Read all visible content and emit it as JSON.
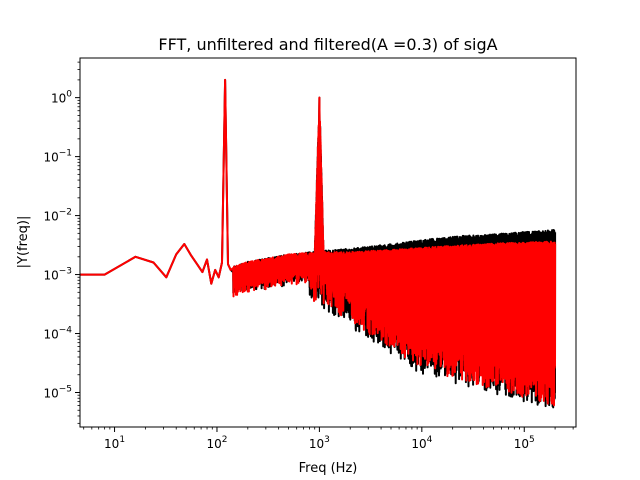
{
  "chart_data": {
    "type": "line",
    "title": "FFT, unfiltered and filtered(A =0.3) of sigA",
    "xlabel": "Freq (Hz)",
    "ylabel": "|Y(freq)|",
    "xscale": "log",
    "yscale": "log",
    "xlim": [
      4.6,
      320000
    ],
    "ylim": [
      2.6e-06,
      4.7
    ],
    "xticks": [
      {
        "value": 10,
        "base": "10",
        "exp": "1"
      },
      {
        "value": 100,
        "base": "10",
        "exp": "2"
      },
      {
        "value": 1000,
        "base": "10",
        "exp": "3"
      },
      {
        "value": 10000,
        "base": "10",
        "exp": "4"
      },
      {
        "value": 100000,
        "base": "10",
        "exp": "5"
      }
    ],
    "yticks": [
      {
        "value": 1e-05,
        "base": "10",
        "exp": "−5"
      },
      {
        "value": 0.0001,
        "base": "10",
        "exp": "−4"
      },
      {
        "value": 0.001,
        "base": "10",
        "exp": "−3"
      },
      {
        "value": 0.01,
        "base": "10",
        "exp": "−2"
      },
      {
        "value": 0.1,
        "base": "10",
        "exp": "−1"
      },
      {
        "value": 1,
        "base": "10",
        "exp": "0"
      }
    ],
    "grid": false,
    "series": [
      {
        "name": "unfiltered",
        "color": "#000000",
        "x": [
          0.1,
          8,
          16,
          24,
          32,
          40,
          48,
          56,
          64,
          72,
          80,
          88,
          96,
          104,
          112,
          120,
          128,
          136,
          200,
          300,
          500,
          700,
          800,
          900,
          1000,
          1100,
          2000,
          5000,
          10000,
          20000,
          30000,
          44000,
          60000,
          100000,
          150000,
          200000
        ],
        "values": [
          0.001,
          0.001,
          0.002,
          0.0016,
          0.0009,
          0.0022,
          0.0033,
          0.0021,
          0.0015,
          0.0011,
          0.0018,
          0.0007,
          0.0012,
          0.0009,
          0.0016,
          2.0,
          0.0015,
          0.0012,
          0.0015,
          0.0017,
          0.002,
          0.0021,
          0.0022,
          0.0022,
          1.0,
          0.0023,
          0.0025,
          0.003,
          0.0035,
          0.004,
          0.0042,
          0.0043,
          0.0045,
          0.0048,
          0.005,
          0.0052
        ],
        "noise_floor": [
          0.0003,
          8e-05,
          2e-05,
          1e-05,
          5e-06
        ]
      },
      {
        "name": "filtered (A = 0.3)",
        "color": "#ff0000",
        "x": [
          0.1,
          8,
          16,
          24,
          32,
          40,
          48,
          56,
          64,
          72,
          80,
          88,
          96,
          104,
          112,
          120,
          128,
          136,
          200,
          300,
          500,
          700,
          800,
          900,
          1000,
          1100,
          2000,
          5000,
          10000,
          20000,
          30000,
          44000,
          60000,
          100000,
          150000,
          200000
        ],
        "values": [
          0.001,
          0.001,
          0.002,
          0.0016,
          0.0009,
          0.0022,
          0.0033,
          0.0021,
          0.0015,
          0.0011,
          0.0018,
          0.0007,
          0.0012,
          0.0009,
          0.0016,
          2.0,
          0.0015,
          0.0012,
          0.0015,
          0.0017,
          0.002,
          0.0021,
          0.0021,
          0.0021,
          1.0,
          0.0022,
          0.0022,
          0.0024,
          0.0026,
          0.0028,
          0.0029,
          0.003,
          0.0031,
          0.0032,
          0.0033,
          0.0033
        ],
        "noise_floor": [
          0.00035,
          0.0001,
          2.5e-05,
          1.2e-05,
          6e-06
        ]
      }
    ]
  }
}
